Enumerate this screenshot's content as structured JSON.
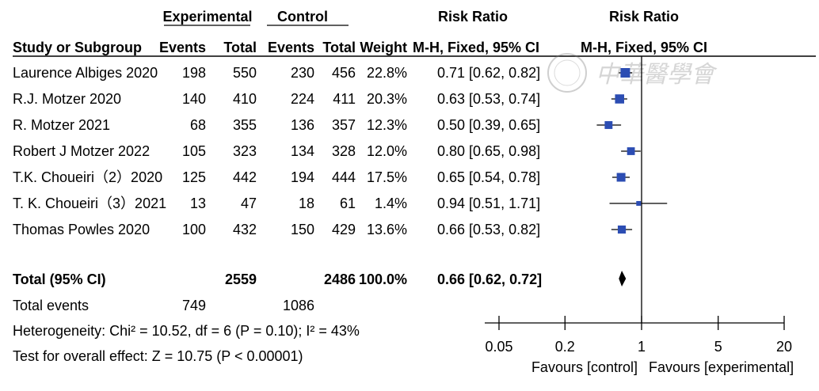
{
  "header": {
    "group1": "Experimental",
    "group2": "Control",
    "effect_col": "Risk Ratio",
    "effect_sub": "M-H, Fixed, 95% CI",
    "plot_col": "Risk Ratio",
    "plot_sub": "M-H, Fixed, 95% CI",
    "study_col": "Study or Subgroup",
    "events": "Events",
    "total": "Total",
    "weight": "Weight"
  },
  "studies": [
    {
      "name": "Laurence Albiges 2020",
      "exp_events": "198",
      "exp_total": "550",
      "ctl_events": "230",
      "ctl_total": "456",
      "weight": "22.8%",
      "ci_text": "0.71 [0.62, 0.82]"
    },
    {
      "name": "R.J. Motzer 2020",
      "exp_events": "140",
      "exp_total": "410",
      "ctl_events": "224",
      "ctl_total": "411",
      "weight": "20.3%",
      "ci_text": "0.63 [0.53, 0.74]"
    },
    {
      "name": "R. Motzer 2021",
      "exp_events": "68",
      "exp_total": "355",
      "ctl_events": "136",
      "ctl_total": "357",
      "weight": "12.3%",
      "ci_text": "0.50 [0.39, 0.65]"
    },
    {
      "name": "Robert J Motzer 2022",
      "exp_events": "105",
      "exp_total": "323",
      "ctl_events": "134",
      "ctl_total": "328",
      "weight": "12.0%",
      "ci_text": "0.80 [0.65, 0.98]"
    },
    {
      "name": "T.K. Choueiri（2）2020",
      "exp_events": "125",
      "exp_total": "442",
      "ctl_events": "194",
      "ctl_total": "444",
      "weight": "17.5%",
      "ci_text": "0.65 [0.54, 0.78]"
    },
    {
      "name": "T. K. Choueiri（3）2021",
      "exp_events": "13",
      "exp_total": "47",
      "ctl_events": "18",
      "ctl_total": "61",
      "weight": "1.4%",
      "ci_text": "0.94 [0.51, 1.71]"
    },
    {
      "name": "Thomas Powles 2020",
      "exp_events": "100",
      "exp_total": "432",
      "ctl_events": "150",
      "ctl_total": "429",
      "weight": "13.6%",
      "ci_text": "0.66 [0.53, 0.82]"
    }
  ],
  "total_row": {
    "label": "Total (95% CI)",
    "exp_total": "2559",
    "ctl_total": "2486",
    "weight": "100.0%",
    "ci_text": "0.66 [0.62, 0.72]"
  },
  "events_row": {
    "label": "Total events",
    "exp_events": "749",
    "ctl_events": "1086"
  },
  "heterogeneity": "Heterogeneity: Chi² = 10.52, df = 6 (P = 0.10); I² = 43%",
  "overall_effect": "Test for overall effect: Z = 10.75 (P < 0.00001)",
  "axis": {
    "ticks": [
      "0.05",
      "0.2",
      "1",
      "5",
      "20"
    ],
    "favours_left": "Favours [control]",
    "favours_right": "Favours [experimental]"
  },
  "watermark_text": "中華醫學會",
  "colors": {
    "marker": "#2c4db3",
    "line": "#000000",
    "diamond": "#000000"
  },
  "chart_data": {
    "type": "forest",
    "scale": "log",
    "xlim": [
      0.05,
      20
    ],
    "ticks": [
      0.05,
      0.2,
      1,
      5,
      20
    ],
    "null_line": 1,
    "studies": [
      {
        "rr": 0.71,
        "lo": 0.62,
        "hi": 0.82,
        "weight": 22.8
      },
      {
        "rr": 0.63,
        "lo": 0.53,
        "hi": 0.74,
        "weight": 20.3
      },
      {
        "rr": 0.5,
        "lo": 0.39,
        "hi": 0.65,
        "weight": 12.3
      },
      {
        "rr": 0.8,
        "lo": 0.65,
        "hi": 0.98,
        "weight": 12.0
      },
      {
        "rr": 0.65,
        "lo": 0.54,
        "hi": 0.78,
        "weight": 17.5
      },
      {
        "rr": 0.94,
        "lo": 0.51,
        "hi": 1.71,
        "weight": 1.4
      },
      {
        "rr": 0.66,
        "lo": 0.53,
        "hi": 0.82,
        "weight": 13.6
      }
    ],
    "pooled": {
      "rr": 0.66,
      "lo": 0.62,
      "hi": 0.72
    }
  }
}
